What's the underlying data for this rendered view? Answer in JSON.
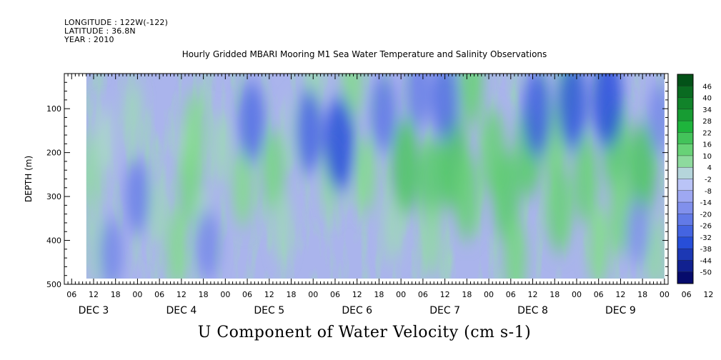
{
  "header": {
    "longitude": "LONGITUDE : 122W(-122)",
    "latitude": "LATITUDE : 36.8N",
    "year": "YEAR : 2010"
  },
  "chart_data": {
    "type": "heatmap",
    "title": "Hourly Gridded MBARI Mooring M1 Sea Water Temperature and Salinity Observations",
    "xlabel": "U Component of Water Velocity (cm s-1)",
    "ylabel": "DEPTH (m)",
    "yticks": [
      100,
      200,
      300,
      400,
      500
    ],
    "ylim": [
      20,
      500
    ],
    "data_depth_range": [
      20,
      487
    ],
    "x_hour_ticks": [
      "06",
      "12",
      "18",
      "00",
      "06",
      "12",
      "18",
      "00",
      "06",
      "12",
      "18",
      "00",
      "06",
      "12",
      "18",
      "00",
      "06",
      "12",
      "18",
      "00",
      "06",
      "12",
      "18",
      "00",
      "06",
      "12",
      "18",
      "00",
      "06",
      "12",
      "18",
      "00"
    ],
    "x_day_labels": [
      "DEC 3",
      "DEC 4",
      "DEC 5",
      "DEC 6",
      "DEC 7",
      "DEC 8",
      "DEC 9"
    ],
    "colorbar": {
      "labels": [
        46,
        40,
        34,
        28,
        22,
        16,
        10,
        4,
        -2,
        -8,
        -14,
        -20,
        -26,
        -32,
        -38,
        -44,
        -50
      ],
      "range": [
        -50,
        50
      ]
    },
    "regions": [
      {
        "day": 2.48,
        "depth": 240,
        "value": 8
      },
      {
        "day": 2.55,
        "depth": 420,
        "value": 6
      },
      {
        "day": 2.62,
        "depth": 170,
        "value": 4
      },
      {
        "day": 2.95,
        "depth": 110,
        "value": 6
      },
      {
        "day": 3.22,
        "depth": 330,
        "value": 6
      },
      {
        "day": 3.45,
        "depth": 420,
        "value": 10
      },
      {
        "day": 3.55,
        "depth": 200,
        "value": 4
      },
      {
        "day": 3.6,
        "depth": 270,
        "value": 12
      },
      {
        "day": 3.65,
        "depth": 150,
        "value": 10
      },
      {
        "day": 3.75,
        "depth": 360,
        "value": 4
      },
      {
        "day": 3.95,
        "depth": 190,
        "value": 6
      },
      {
        "day": 4.2,
        "depth": 280,
        "value": 10
      },
      {
        "day": 4.55,
        "depth": 240,
        "value": 12
      },
      {
        "day": 4.65,
        "depth": 370,
        "value": 6
      },
      {
        "day": 4.8,
        "depth": 150,
        "value": 4
      },
      {
        "day": 5.0,
        "depth": 40,
        "value": 6
      },
      {
        "day": 5.2,
        "depth": 260,
        "value": 8
      },
      {
        "day": 5.45,
        "depth": 40,
        "value": 10
      },
      {
        "day": 5.6,
        "depth": 250,
        "value": 10
      },
      {
        "day": 5.9,
        "depth": 370,
        "value": 6
      },
      {
        "day": 6.05,
        "depth": 230,
        "value": 18
      },
      {
        "day": 6.35,
        "depth": 270,
        "value": 16
      },
      {
        "day": 6.35,
        "depth": 400,
        "value": 8
      },
      {
        "day": 6.6,
        "depth": 220,
        "value": 18
      },
      {
        "day": 6.75,
        "depth": 300,
        "value": 14
      },
      {
        "day": 6.8,
        "depth": 40,
        "value": 14
      },
      {
        "day": 7.05,
        "depth": 200,
        "value": 14
      },
      {
        "day": 7.2,
        "depth": 300,
        "value": 16
      },
      {
        "day": 7.3,
        "depth": 440,
        "value": 12
      },
      {
        "day": 7.45,
        "depth": 200,
        "value": 16
      },
      {
        "day": 7.75,
        "depth": 180,
        "value": 12
      },
      {
        "day": 7.8,
        "depth": 330,
        "value": 14
      },
      {
        "day": 7.9,
        "depth": 40,
        "value": 12
      },
      {
        "day": 8.1,
        "depth": 260,
        "value": 14
      },
      {
        "day": 8.25,
        "depth": 420,
        "value": 10
      },
      {
        "day": 8.45,
        "depth": 190,
        "value": 16
      },
      {
        "day": 8.5,
        "depth": 340,
        "value": 12
      },
      {
        "day": 8.75,
        "depth": 240,
        "value": 18
      },
      {
        "day": 8.9,
        "depth": 430,
        "value": 8
      },
      {
        "day": 3.0,
        "depth": 300,
        "value": -18
      },
      {
        "day": 2.7,
        "depth": 430,
        "value": -16
      },
      {
        "day": 3.8,
        "depth": 410,
        "value": -16
      },
      {
        "day": 4.3,
        "depth": 130,
        "value": -22
      },
      {
        "day": 4.95,
        "depth": 150,
        "value": -24
      },
      {
        "day": 5.3,
        "depth": 180,
        "value": -30
      },
      {
        "day": 5.8,
        "depth": 110,
        "value": -20
      },
      {
        "day": 6.2,
        "depth": 60,
        "value": -18
      },
      {
        "day": 6.5,
        "depth": 80,
        "value": -22
      },
      {
        "day": 7.55,
        "depth": 110,
        "value": -26
      },
      {
        "day": 7.95,
        "depth": 90,
        "value": -28
      },
      {
        "day": 8.35,
        "depth": 80,
        "value": -30
      },
      {
        "day": 8.7,
        "depth": 380,
        "value": -14
      },
      {
        "day": 8.95,
        "depth": 120,
        "value": -16
      }
    ]
  }
}
